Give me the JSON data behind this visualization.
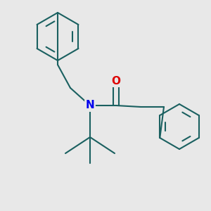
{
  "background_color": "#e8e8e8",
  "bond_color": "#1a6060",
  "N_color": "#0000ee",
  "O_color": "#dd0000",
  "line_width": 1.5,
  "font_size": 10,
  "figsize": [
    3.0,
    3.0
  ],
  "dpi": 100
}
